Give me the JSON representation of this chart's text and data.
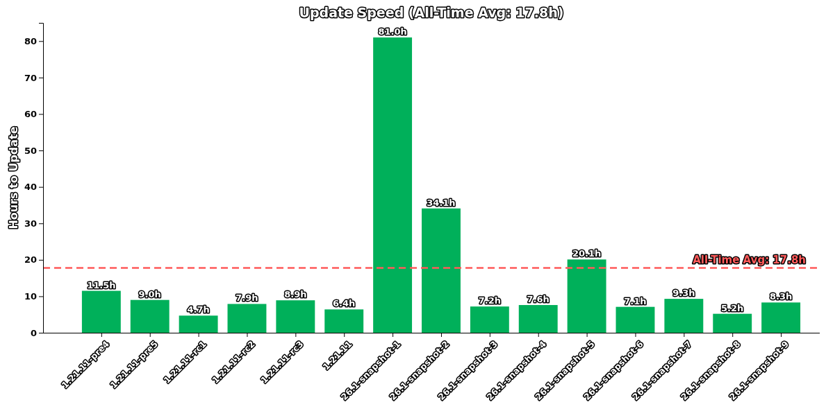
{
  "chart_data": {
    "type": "bar",
    "title": "Update Speed (All-Time Avg: 17.8h)",
    "ylabel": "Hours to Update",
    "categories": [
      "1.21.11-pre4",
      "1.21.11-pre5",
      "1.21.11-rc1",
      "1.21.11-rc2",
      "1.21.11-rc3",
      "1.21.11",
      "26.1-snapshot-1",
      "26.1-snapshot-2",
      "26.1-snapshot-3",
      "26.1-snapshot-4",
      "26.1-snapshot-5",
      "26.1-snapshot-6",
      "26.1-snapshot-7",
      "26.1-snapshot-8",
      "26.1-snapshot-9"
    ],
    "values": [
      11.5,
      9.0,
      4.7,
      7.9,
      8.9,
      6.4,
      81.0,
      34.1,
      7.2,
      7.6,
      20.1,
      7.1,
      9.3,
      5.2,
      8.3
    ],
    "value_labels": [
      "11.5h",
      "9.0h",
      "4.7h",
      "7.9h",
      "8.9h",
      "6.4h",
      "81.0h",
      "34.1h",
      "7.2h",
      "7.6h",
      "20.1h",
      "7.1h",
      "9.3h",
      "5.2h",
      "8.3h"
    ],
    "color": "#00b05a",
    "ylim": [
      0,
      85
    ],
    "yticks": [
      0,
      10,
      20,
      30,
      40,
      50,
      60,
      70,
      80
    ],
    "ref_lines": [
      {
        "axis": "y",
        "value": 17.8,
        "label": "All-Time Avg: 17.8h",
        "color": "#ff5a5a",
        "line_style": "dashed"
      }
    ]
  }
}
